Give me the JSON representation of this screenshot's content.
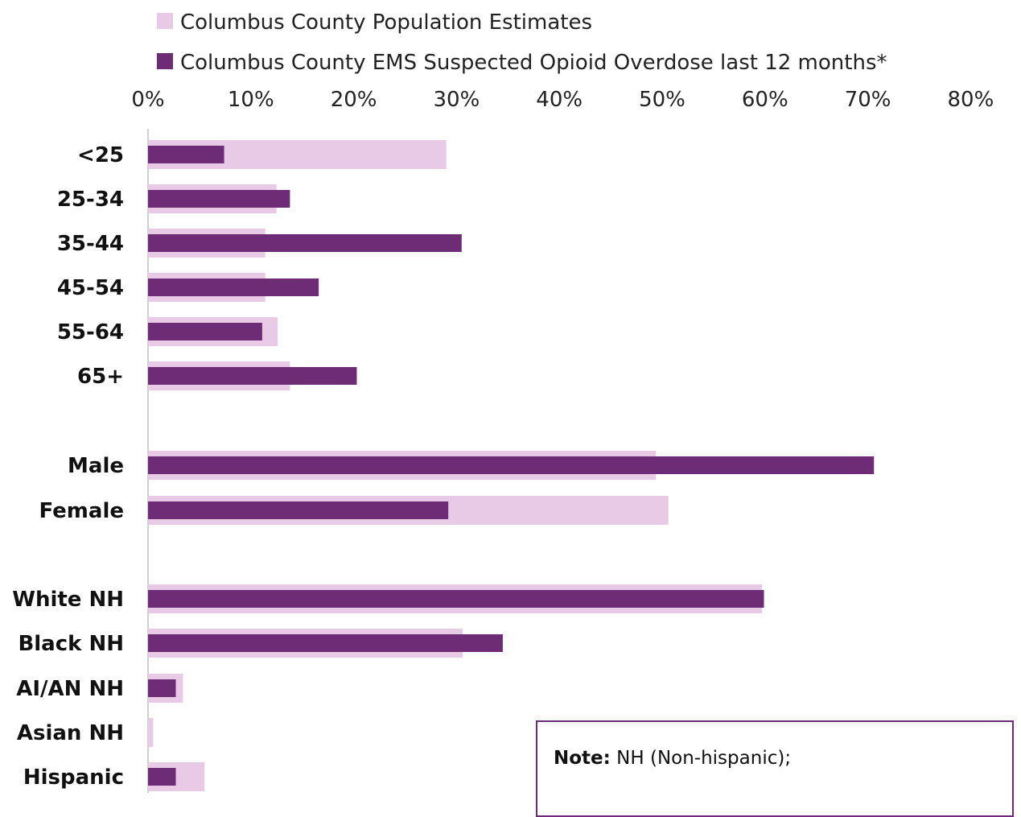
{
  "chart_data": {
    "type": "bar",
    "orientation": "horizontal",
    "title": "",
    "xlim": [
      0,
      80
    ],
    "x_ticks": [
      "0%",
      "10%",
      "20%",
      "30%",
      "40%",
      "50%",
      "60%",
      "70%",
      "80%"
    ],
    "legend_position": "top",
    "categories": [
      "<25",
      "25-34",
      "35-44",
      "45-54",
      "55-64",
      "65+",
      "Male",
      "Female",
      "White NH",
      "Black NH",
      "AI/AN NH",
      "Asian NH",
      "Hispanic"
    ],
    "groups": [
      [
        "<25",
        "25-34",
        "35-44",
        "45-54",
        "55-64",
        "65+"
      ],
      [
        "Male",
        "Female"
      ],
      [
        "White NH",
        "Black NH",
        "AI/AN NH",
        "Asian NH",
        "Hispanic"
      ]
    ],
    "series": [
      {
        "name": "Columbus County Population Estimates",
        "color": "#e8c9e6",
        "values": [
          29.0,
          12.5,
          11.4,
          11.4,
          12.6,
          13.8,
          49.4,
          50.6,
          59.7,
          30.6,
          3.4,
          0.5,
          5.5
        ]
      },
      {
        "name": "Columbus County EMS Suspected Opioid Overdose last 12 months*",
        "color": "#6f2c76",
        "values": [
          7.4,
          13.8,
          30.5,
          16.6,
          11.1,
          20.3,
          70.6,
          29.2,
          59.9,
          34.5,
          2.7,
          0,
          2.7
        ]
      }
    ]
  },
  "note": {
    "bold": "Note:",
    "text": " NH (Non-hispanic);"
  },
  "colors": {
    "population": "#e8c9e6",
    "ems": "#6f2c76",
    "axis": "#d0d0d0"
  }
}
